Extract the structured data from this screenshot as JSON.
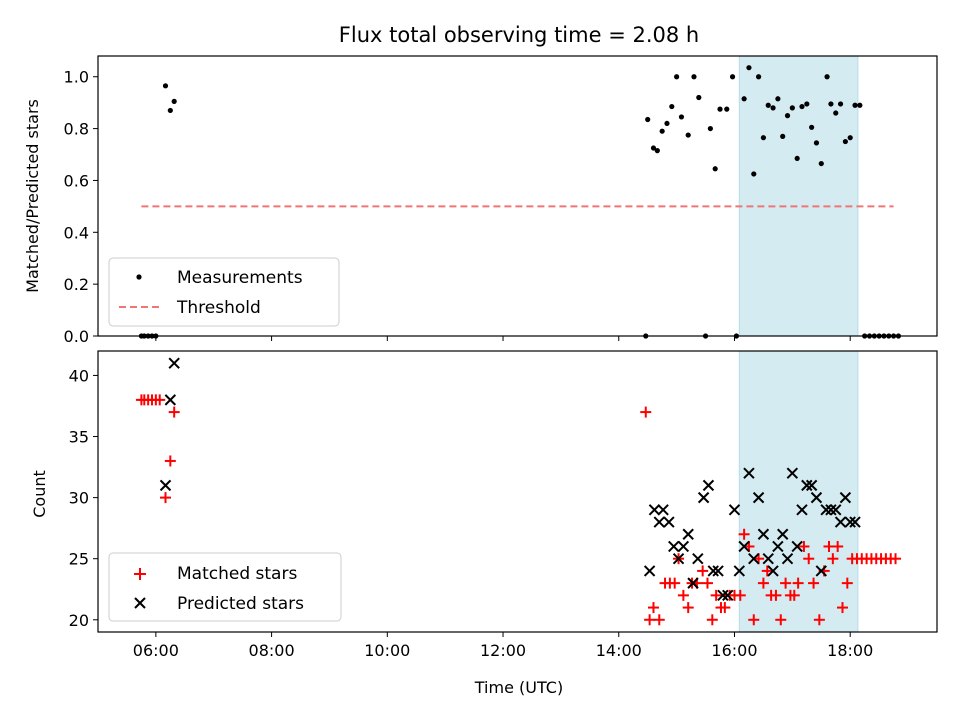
{
  "chart_data": [
    {
      "type": "scatter",
      "title": "Flux total observing time = 2.08 h",
      "xlabel": "",
      "ylabel": "Matched/Predicted stars",
      "xlim": [
        "05:00",
        "19:30"
      ],
      "ylim": [
        0,
        1.08
      ],
      "yticks": [
        "0.0",
        "0.2",
        "0.4",
        "0.6",
        "0.8",
        "1.0"
      ],
      "legend": {
        "placement": "lower-left",
        "entries": [
          "Measurements",
          "Threshold"
        ]
      },
      "highlight_span": [
        "16:05",
        "18:08"
      ],
      "highlight_color": "#d4ebf2",
      "series": [
        {
          "name": "Measurements",
          "marker": "dot",
          "color": "#000000",
          "points": [
            [
              "05:45",
              0
            ],
            [
              "05:48",
              0
            ],
            [
              "05:52",
              0
            ],
            [
              "05:56",
              0
            ],
            [
              "06:00",
              0
            ],
            [
              "06:10",
              0.965
            ],
            [
              "06:15",
              0.87
            ],
            [
              "06:19",
              0.905
            ],
            [
              "14:28",
              0
            ],
            [
              "14:30",
              0.835
            ],
            [
              "14:36",
              0.725
            ],
            [
              "14:40",
              0.715
            ],
            [
              "14:45",
              0.79
            ],
            [
              "14:50",
              0.82
            ],
            [
              "14:55",
              0.885
            ],
            [
              "15:00",
              1.0
            ],
            [
              "15:05",
              0.845
            ],
            [
              "15:12",
              0.775
            ],
            [
              "15:18",
              1.0
            ],
            [
              "15:23",
              0.92
            ],
            [
              "15:30",
              0
            ],
            [
              "15:35",
              0.8
            ],
            [
              "15:40",
              0.645
            ],
            [
              "15:45",
              0.875
            ],
            [
              "15:52",
              0.875
            ],
            [
              "15:58",
              1.0
            ],
            [
              "16:02",
              0
            ],
            [
              "16:10",
              0.915
            ],
            [
              "16:15",
              1.035
            ],
            [
              "16:20",
              0.625
            ],
            [
              "16:25",
              1.0
            ],
            [
              "16:30",
              0.765
            ],
            [
              "16:35",
              0.89
            ],
            [
              "16:40",
              0.88
            ],
            [
              "16:45",
              0.915
            ],
            [
              "16:50",
              0.77
            ],
            [
              "16:55",
              0.85
            ],
            [
              "17:00",
              0.88
            ],
            [
              "17:05",
              0.685
            ],
            [
              "17:10",
              0.885
            ],
            [
              "17:15",
              0.895
            ],
            [
              "17:20",
              0.805
            ],
            [
              "17:25",
              0.745
            ],
            [
              "17:30",
              0.665
            ],
            [
              "17:36",
              1.0
            ],
            [
              "17:40",
              0.895
            ],
            [
              "17:45",
              0.86
            ],
            [
              "17:50",
              0.895
            ],
            [
              "17:55",
              0.75
            ],
            [
              "18:00",
              0.765
            ],
            [
              "18:05",
              0.89
            ],
            [
              "18:10",
              0.89
            ],
            [
              "18:15",
              0
            ],
            [
              "18:20",
              0
            ],
            [
              "18:25",
              0
            ],
            [
              "18:30",
              0
            ],
            [
              "18:35",
              0
            ],
            [
              "18:40",
              0
            ],
            [
              "18:45",
              0
            ],
            [
              "18:50",
              0
            ]
          ]
        },
        {
          "name": "Threshold",
          "style": "dashed",
          "color": "#f07575",
          "x": [
            "05:45",
            "18:45"
          ],
          "y": [
            0.5,
            0.5
          ]
        }
      ]
    },
    {
      "type": "scatter",
      "title": "",
      "xlabel": "Time (UTC)",
      "ylabel": "Count",
      "xlim": [
        "05:00",
        "19:30"
      ],
      "ylim": [
        19,
        42
      ],
      "yticks": [
        "20",
        "25",
        "30",
        "35",
        "40"
      ],
      "xticks": [
        "06:00",
        "08:00",
        "10:00",
        "12:00",
        "14:00",
        "16:00",
        "18:00"
      ],
      "legend": {
        "placement": "lower-left",
        "entries": [
          "Matched stars",
          "Predicted stars"
        ]
      },
      "highlight_span": [
        "16:05",
        "18:08"
      ],
      "highlight_color": "#d4ebf2",
      "series": [
        {
          "name": "Matched stars",
          "marker": "plus",
          "color": "#ff0000",
          "points": [
            [
              "05:45",
              38
            ],
            [
              "05:48",
              38
            ],
            [
              "05:52",
              38
            ],
            [
              "05:56",
              38
            ],
            [
              "06:00",
              38
            ],
            [
              "06:04",
              38
            ],
            [
              "06:10",
              30
            ],
            [
              "06:15",
              33
            ],
            [
              "06:19",
              37
            ],
            [
              "14:28",
              37
            ],
            [
              "14:32",
              20
            ],
            [
              "14:36",
              21
            ],
            [
              "14:42",
              20
            ],
            [
              "14:48",
              23
            ],
            [
              "14:53",
              23
            ],
            [
              "14:58",
              23
            ],
            [
              "15:02",
              25
            ],
            [
              "15:07",
              22
            ],
            [
              "15:12",
              21
            ],
            [
              "15:16",
              23
            ],
            [
              "15:21",
              23
            ],
            [
              "15:27",
              24
            ],
            [
              "15:32",
              23
            ],
            [
              "15:37",
              20
            ],
            [
              "15:41",
              22
            ],
            [
              "15:46",
              21
            ],
            [
              "15:50",
              21
            ],
            [
              "15:55",
              22
            ],
            [
              "16:00",
              22
            ],
            [
              "16:06",
              22
            ],
            [
              "16:10",
              27
            ],
            [
              "16:15",
              26
            ],
            [
              "16:20",
              20
            ],
            [
              "16:25",
              25
            ],
            [
              "16:30",
              23
            ],
            [
              "16:34",
              24
            ],
            [
              "16:38",
              22
            ],
            [
              "16:43",
              22
            ],
            [
              "16:48",
              20
            ],
            [
              "16:53",
              23
            ],
            [
              "16:58",
              22
            ],
            [
              "17:02",
              22
            ],
            [
              "17:06",
              23
            ],
            [
              "17:12",
              26
            ],
            [
              "17:17",
              25
            ],
            [
              "17:22",
              23
            ],
            [
              "17:28",
              20
            ],
            [
              "17:33",
              24
            ],
            [
              "17:38",
              26
            ],
            [
              "17:42",
              25
            ],
            [
              "17:47",
              26
            ],
            [
              "17:52",
              21
            ],
            [
              "17:57",
              23
            ],
            [
              "18:02",
              25
            ],
            [
              "18:07",
              25
            ],
            [
              "18:12",
              25
            ],
            [
              "18:17",
              25
            ],
            [
              "18:22",
              25
            ],
            [
              "18:27",
              25
            ],
            [
              "18:32",
              25
            ],
            [
              "18:37",
              25
            ],
            [
              "18:42",
              25
            ],
            [
              "18:47",
              25
            ]
          ]
        },
        {
          "name": "Predicted stars",
          "marker": "x",
          "color": "#000000",
          "points": [
            [
              "06:10",
              31
            ],
            [
              "06:15",
              38
            ],
            [
              "06:19",
              41
            ],
            [
              "14:32",
              24
            ],
            [
              "14:37",
              29
            ],
            [
              "14:42",
              28
            ],
            [
              "14:46",
              29
            ],
            [
              "14:52",
              28
            ],
            [
              "14:57",
              26
            ],
            [
              "15:02",
              25
            ],
            [
              "15:07",
              26
            ],
            [
              "15:12",
              27
            ],
            [
              "15:17",
              23
            ],
            [
              "15:22",
              25
            ],
            [
              "15:28",
              30
            ],
            [
              "15:33",
              31
            ],
            [
              "15:38",
              24
            ],
            [
              "15:43",
              24
            ],
            [
              "15:48",
              22
            ],
            [
              "15:53",
              22
            ],
            [
              "16:00",
              29
            ],
            [
              "16:05",
              24
            ],
            [
              "16:10",
              26
            ],
            [
              "16:15",
              32
            ],
            [
              "16:20",
              25
            ],
            [
              "16:25",
              30
            ],
            [
              "16:30",
              27
            ],
            [
              "16:35",
              25
            ],
            [
              "16:40",
              24
            ],
            [
              "16:45",
              26
            ],
            [
              "16:50",
              27
            ],
            [
              "16:55",
              25
            ],
            [
              "17:00",
              32
            ],
            [
              "17:05",
              26
            ],
            [
              "17:10",
              29
            ],
            [
              "17:15",
              31
            ],
            [
              "17:20",
              31
            ],
            [
              "17:25",
              30
            ],
            [
              "17:30",
              24
            ],
            [
              "17:35",
              29
            ],
            [
              "17:40",
              29
            ],
            [
              "17:45",
              29
            ],
            [
              "17:50",
              28
            ],
            [
              "17:55",
              30
            ],
            [
              "18:00",
              28
            ],
            [
              "18:05",
              28
            ]
          ]
        }
      ]
    }
  ]
}
